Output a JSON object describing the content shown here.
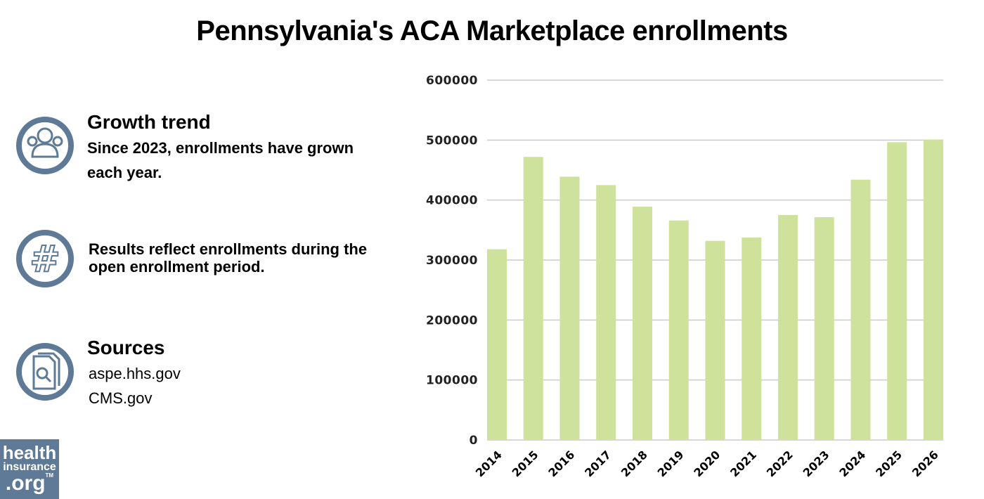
{
  "title": "Pennsylvania's ACA Marketplace enrollments",
  "panels": [
    {
      "icon": "people-group-icon",
      "heading": "Growth trend",
      "lines": [
        "Since 2023, enrollments have grown",
        "each year."
      ]
    },
    {
      "icon": "hashtag-icon",
      "heading": "",
      "lines": [
        "Results reflect enrollments during the",
        "open enrollment period."
      ]
    },
    {
      "icon": "document-search-icon",
      "heading": "Sources",
      "lines": [
        "aspe.hhs.gov",
        "CMS.gov"
      ]
    }
  ],
  "logo": {
    "line1": "health",
    "line2": "insurance",
    "line3": ".org",
    "tm": "TM"
  },
  "colors": {
    "bar": "#cfe29c",
    "icon": "#5f7a96",
    "grid": "#cccccc"
  },
  "chart_data": {
    "type": "bar",
    "title": "Pennsylvania's ACA Marketplace enrollments",
    "categories": [
      "2014",
      "2015",
      "2016",
      "2017",
      "2018",
      "2019",
      "2020",
      "2021",
      "2022",
      "2023",
      "2024",
      "2025",
      "2026"
    ],
    "values": [
      318000,
      472000,
      439000,
      425000,
      389000,
      366000,
      332000,
      337500,
      375000,
      371500,
      434000,
      496500,
      501000
    ],
    "ylim": [
      0,
      600000
    ],
    "yticks": [
      "0",
      "100000",
      "200000",
      "300000",
      "400000",
      "500000",
      "600000"
    ],
    "grid": true,
    "xlabel": "",
    "ylabel": ""
  }
}
